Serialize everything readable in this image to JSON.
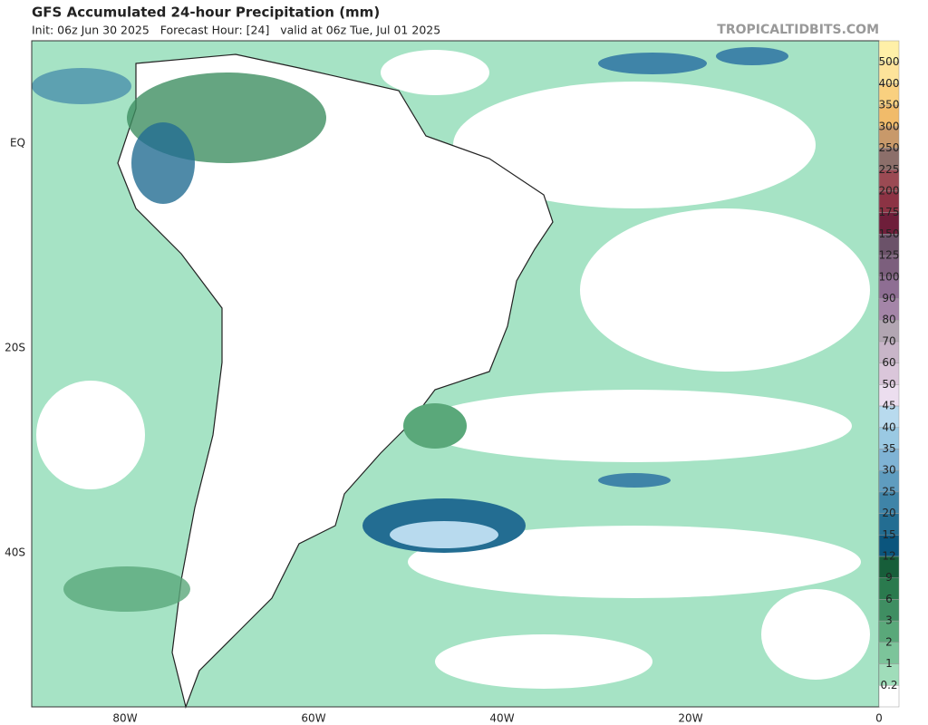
{
  "header": {
    "title": "GFS Accumulated 24-hour Precipitation (mm)",
    "subtitle": "Init: 06z Jun 30 2025   Forecast Hour: [24]   valid at 06z Tue, Jul 01 2025",
    "watermark": "TROPICALTIDBITS.COM"
  },
  "legend": {
    "labels": [
      "500",
      "400",
      "350",
      "300",
      "250",
      "225",
      "200",
      "175",
      "150",
      "125",
      "100",
      "90",
      "80",
      "70",
      "60",
      "50",
      "45",
      "40",
      "35",
      "30",
      "25",
      "20",
      "15",
      "12",
      "9",
      "6",
      "3",
      "2",
      "1",
      "0.2"
    ],
    "colors": [
      "#fff0a8",
      "#fde39a",
      "#f9d07f",
      "#f1bb6a",
      "#c8996a",
      "#8c6f6a",
      "#9b4a53",
      "#8c3344",
      "#6e1e3a",
      "#6b5269",
      "#7c5f7d",
      "#8e6e93",
      "#a485a8",
      "#b2a6b2",
      "#c8b5c8",
      "#dac6da",
      "#ecdeef",
      "#b8daee",
      "#9ac9e3",
      "#7fb3d5",
      "#5f9cbf",
      "#3f84a8",
      "#236d92",
      "#0b557d",
      "#175e3a",
      "#2a7a4e",
      "#3f8e62",
      "#5aa87a",
      "#7cc49a",
      "#a0ddba",
      "#ffffff"
    ]
  },
  "axes": {
    "longitudes": [
      "80W",
      "60W",
      "40W",
      "20W",
      "0"
    ],
    "latitudes": [
      "EQ",
      "20S",
      "40S"
    ]
  }
}
